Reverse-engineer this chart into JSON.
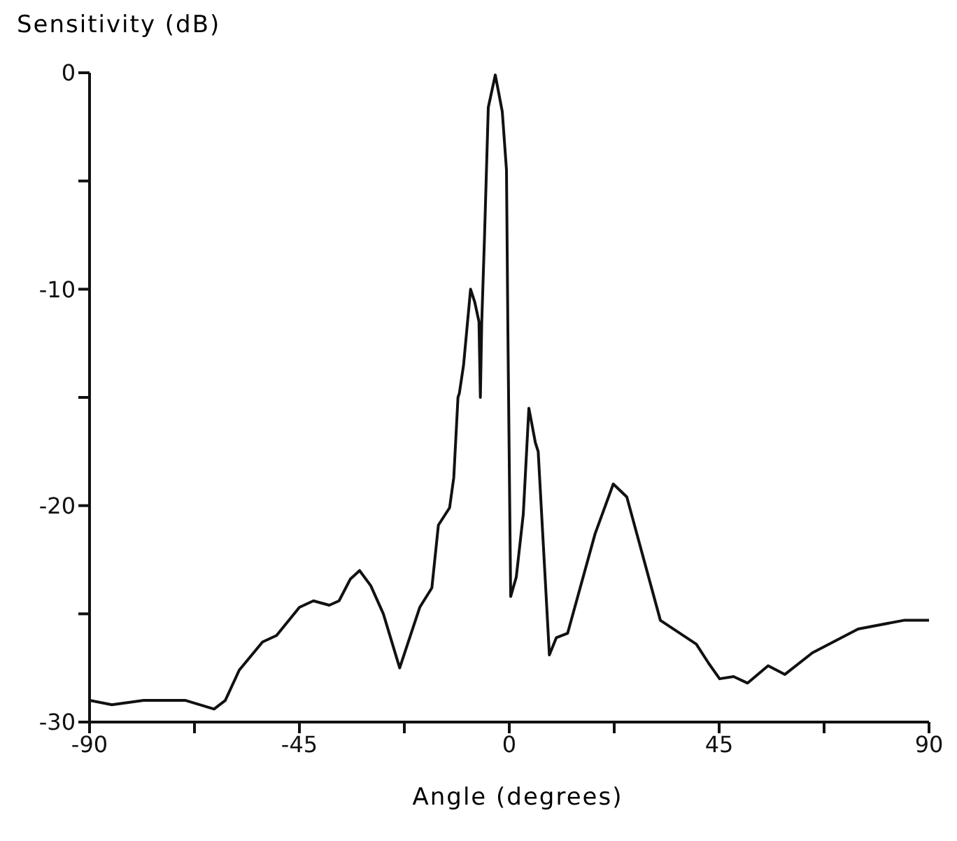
{
  "chart_data": {
    "type": "line",
    "xlabel": "Angle (degrees)",
    "ylabel": "Sensitivity (dB)",
    "xlim": [
      -90,
      90
    ],
    "ylim": [
      -30,
      0
    ],
    "xticks": [
      -90,
      {
        "value": -67.5,
        "label": null
      },
      -45,
      {
        "value": -22.5,
        "label": null
      },
      0,
      {
        "value": 22.5,
        "label": null
      },
      45,
      {
        "value": 67.5,
        "label": null
      },
      90
    ],
    "yticks": [
      -30,
      {
        "value": -25,
        "label": null
      },
      -20,
      {
        "value": -15,
        "label": null
      },
      -10,
      {
        "value": -5,
        "label": null
      },
      0
    ],
    "marker": "none",
    "line_style": "solid",
    "series": [
      {
        "color": "#111111",
        "x": [
          -90,
          -85.2,
          -78.4,
          -69.4,
          -63.3,
          -60.9,
          -57.9,
          -52.9,
          -49.9,
          -45,
          -42,
          -38.6,
          -36.5,
          -34.1,
          -32.1,
          -29.7,
          -27,
          -23.5,
          -19.2,
          -16.6,
          -15.2,
          -12.8,
          -11.9,
          -11,
          -10.7,
          -9.8,
          -8.3,
          -7.4,
          -6.5,
          -6.2,
          -5.9,
          -5.3,
          -4.5,
          -3,
          -1.5,
          -0.6,
          -0.3,
          0.3,
          1.5,
          3,
          4.2,
          5.6,
          6.2,
          8.6,
          10.1,
          12.5,
          18.4,
          22.3,
          25.2,
          32.4,
          40.1,
          42.8,
          45.1,
          48.1,
          51.1,
          55.5,
          59.1,
          65,
          74.8,
          84.6,
          90
        ],
        "values": [
          -29,
          -29.2,
          -29,
          -29,
          -29.4,
          -29,
          -27.6,
          -26.3,
          -26,
          -24.7,
          -24.4,
          -24.6,
          -24.4,
          -23.4,
          -23,
          -23.7,
          -25,
          -27.5,
          -24.7,
          -23.8,
          -20.9,
          -20.1,
          -18.7,
          -15,
          -14.8,
          -13.5,
          -10,
          -10.6,
          -11.5,
          -15,
          -11.5,
          -7.5,
          -1.6,
          -0.1,
          -1.8,
          -4.5,
          -11.9,
          -24.2,
          -23.3,
          -20.4,
          -15.5,
          -17.1,
          -17.5,
          -26.9,
          -26.1,
          -25.9,
          -21.3,
          -19,
          -19.6,
          -25.3,
          -26.4,
          -27.3,
          -28,
          -27.9,
          -28.2,
          -27.4,
          -27.8,
          -26.8,
          -25.7,
          -25.3,
          -25.3
        ]
      }
    ]
  }
}
